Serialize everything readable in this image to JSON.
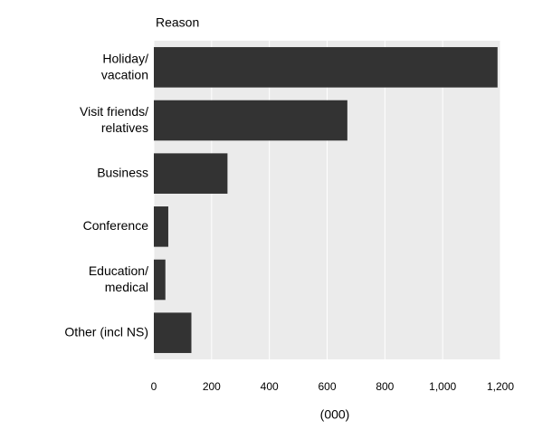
{
  "chart_data": {
    "type": "bar",
    "orientation": "horizontal",
    "y_label": "Reason",
    "x_label": "(000)",
    "categories": [
      "Holiday/\nvacation",
      "Visit friends/\nrelatives",
      "Business",
      "Conference",
      "Education/\nmedical",
      "Other (incl NS)"
    ],
    "values": [
      1190,
      670,
      255,
      50,
      40,
      130
    ],
    "color": "#333333",
    "xlim": [
      0,
      1200
    ],
    "xticks": [
      0,
      200,
      400,
      600,
      800,
      {
        "value": 1000,
        "label": "1,000"
      },
      {
        "value": 1200,
        "label": "1,200"
      }
    ],
    "grid": true
  }
}
